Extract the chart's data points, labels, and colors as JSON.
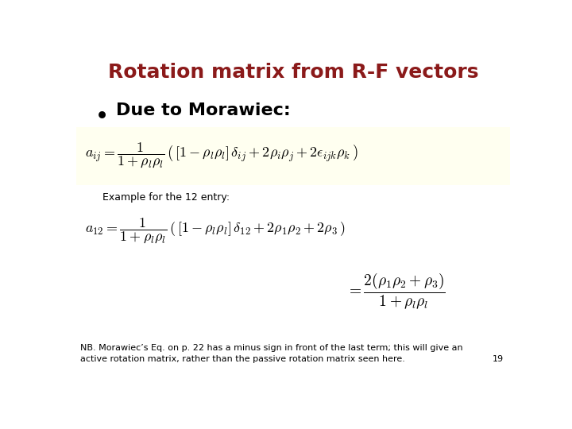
{
  "title": "Rotation matrix from R-F vectors",
  "title_color": "#8B1A1A",
  "title_fontsize": 18,
  "bullet_text": "Due to Morawiec:",
  "bullet_fontsize": 16,
  "eq1_bg": "#FFFFF0",
  "example_label": "Example for the 12 entry:",
  "example_fontsize": 9,
  "footnote_line1": "NB. Morawiec’s Eq. on p. 22 has a minus sign in front of the last term; this will give an",
  "footnote_line2": "active rotation matrix, rather than the passive rotation matrix seen here.",
  "footnote_fontsize": 8,
  "page_number": "19",
  "bg_color": "#FFFFFF",
  "eq1_fontsize": 13,
  "eq2_fontsize": 13,
  "eq3_fontsize": 14
}
